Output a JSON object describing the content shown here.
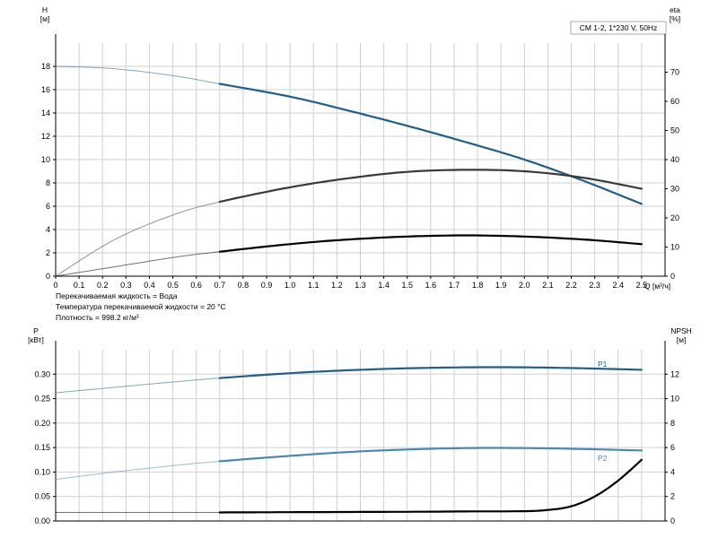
{
  "chart_data": [
    {
      "type": "line",
      "title": "CM 1-2, 1*230 V, 50Hz",
      "xlabel": "Q [м³/ч]",
      "ylabel_left_name": "H",
      "ylabel_left_unit": "[м]",
      "ylabel_right_name": "eta",
      "ylabel_right_unit": "[%]",
      "xlim": [
        0,
        2.6
      ],
      "ylim_left": [
        0,
        20
      ],
      "ylim_right": [
        0,
        80
      ],
      "grid": true,
      "x_ticks": [
        "0",
        "0.1",
        "0.2",
        "0.3",
        "0.4",
        "0.5",
        "0.6",
        "0.7",
        "0.8",
        "0.9",
        "1.0",
        "1.1",
        "1.2",
        "1.3",
        "1.4",
        "1.5",
        "1.6",
        "1.7",
        "1.8",
        "1.9",
        "2.0",
        "2.1",
        "2.2",
        "2.3",
        "2.4",
        "2.5"
      ],
      "y_ticks_left": [
        "0",
        "2",
        "4",
        "6",
        "8",
        "10",
        "12",
        "14",
        "16",
        "18"
      ],
      "y_ticks_right": [
        "0",
        "10",
        "20",
        "30",
        "40",
        "50",
        "60",
        "70"
      ],
      "operating_range_start": 0.7,
      "series": [
        {
          "key": "H",
          "axis": "left",
          "color": "#1f5f8e",
          "x": [
            0,
            0.25,
            0.5,
            0.7,
            1.0,
            1.25,
            1.5,
            1.75,
            2.0,
            2.25,
            2.5
          ],
          "y": [
            18.0,
            17.8,
            17.2,
            16.5,
            15.4,
            14.2,
            12.9,
            11.5,
            10.0,
            8.2,
            6.2
          ]
        },
        {
          "key": "eta",
          "axis": "right",
          "color": "#3a3a3a",
          "x": [
            0,
            0.25,
            0.5,
            0.7,
            1.0,
            1.25,
            1.5,
            1.75,
            2.0,
            2.25,
            2.5
          ],
          "y": [
            0,
            12.5,
            21.0,
            25.5,
            30.5,
            33.6,
            35.8,
            36.5,
            36.0,
            33.8,
            30.0
          ]
        },
        {
          "key": "H_eta",
          "axis": "left",
          "color": "#000000",
          "x": [
            0,
            0.25,
            0.5,
            0.7,
            1.0,
            1.25,
            1.5,
            1.75,
            2.0,
            2.25,
            2.5
          ],
          "y": [
            0,
            0.8,
            1.6,
            2.1,
            2.75,
            3.15,
            3.4,
            3.5,
            3.4,
            3.15,
            2.75
          ]
        }
      ],
      "info_lines": [
        "Перекачиваемая жидкость = Вода",
        "Температура перекачиваемой жидкости = 20 °C",
        "Плотность = 998.2 кг/м³"
      ]
    },
    {
      "type": "line",
      "ylabel_left_name": "P",
      "ylabel_left_unit": "[кВт]",
      "ylabel_right_name": "NPSH",
      "ylabel_right_unit": "[м]",
      "xlim": [
        0,
        2.6
      ],
      "ylim_left": [
        0,
        0.35
      ],
      "ylim_right": [
        0,
        14
      ],
      "grid": true,
      "y_ticks_left": [
        "0.00",
        "0.05",
        "0.10",
        "0.15",
        "0.20",
        "0.25",
        "0.30"
      ],
      "y_ticks_right": [
        "0",
        "2",
        "4",
        "6",
        "8",
        "10",
        "12"
      ],
      "operating_range_start": 0.7,
      "series": [
        {
          "name": "P1",
          "axis": "left",
          "color": "#1f5f8e",
          "x": [
            0,
            0.25,
            0.5,
            0.7,
            1.0,
            1.25,
            1.5,
            1.75,
            2.0,
            2.25,
            2.5
          ],
          "y": [
            0.262,
            0.273,
            0.284,
            0.292,
            0.302,
            0.308,
            0.312,
            0.314,
            0.314,
            0.312,
            0.309
          ]
        },
        {
          "name": "P2",
          "axis": "left",
          "color": "#4a88b8",
          "x": [
            0,
            0.25,
            0.5,
            0.7,
            1.0,
            1.25,
            1.5,
            1.75,
            2.0,
            2.25,
            2.5
          ],
          "y": [
            0.085,
            0.1,
            0.113,
            0.122,
            0.133,
            0.141,
            0.146,
            0.149,
            0.149,
            0.147,
            0.144
          ]
        },
        {
          "key": "NPSH",
          "axis": "right",
          "color": "#000000",
          "x": [
            0,
            0.7,
            1.0,
            1.5,
            1.75,
            2.0,
            2.1,
            2.2,
            2.3,
            2.4,
            2.5
          ],
          "y": [
            0.7,
            0.7,
            0.72,
            0.75,
            0.78,
            0.8,
            0.9,
            1.2,
            2.0,
            3.3,
            5.0
          ]
        }
      ]
    }
  ]
}
